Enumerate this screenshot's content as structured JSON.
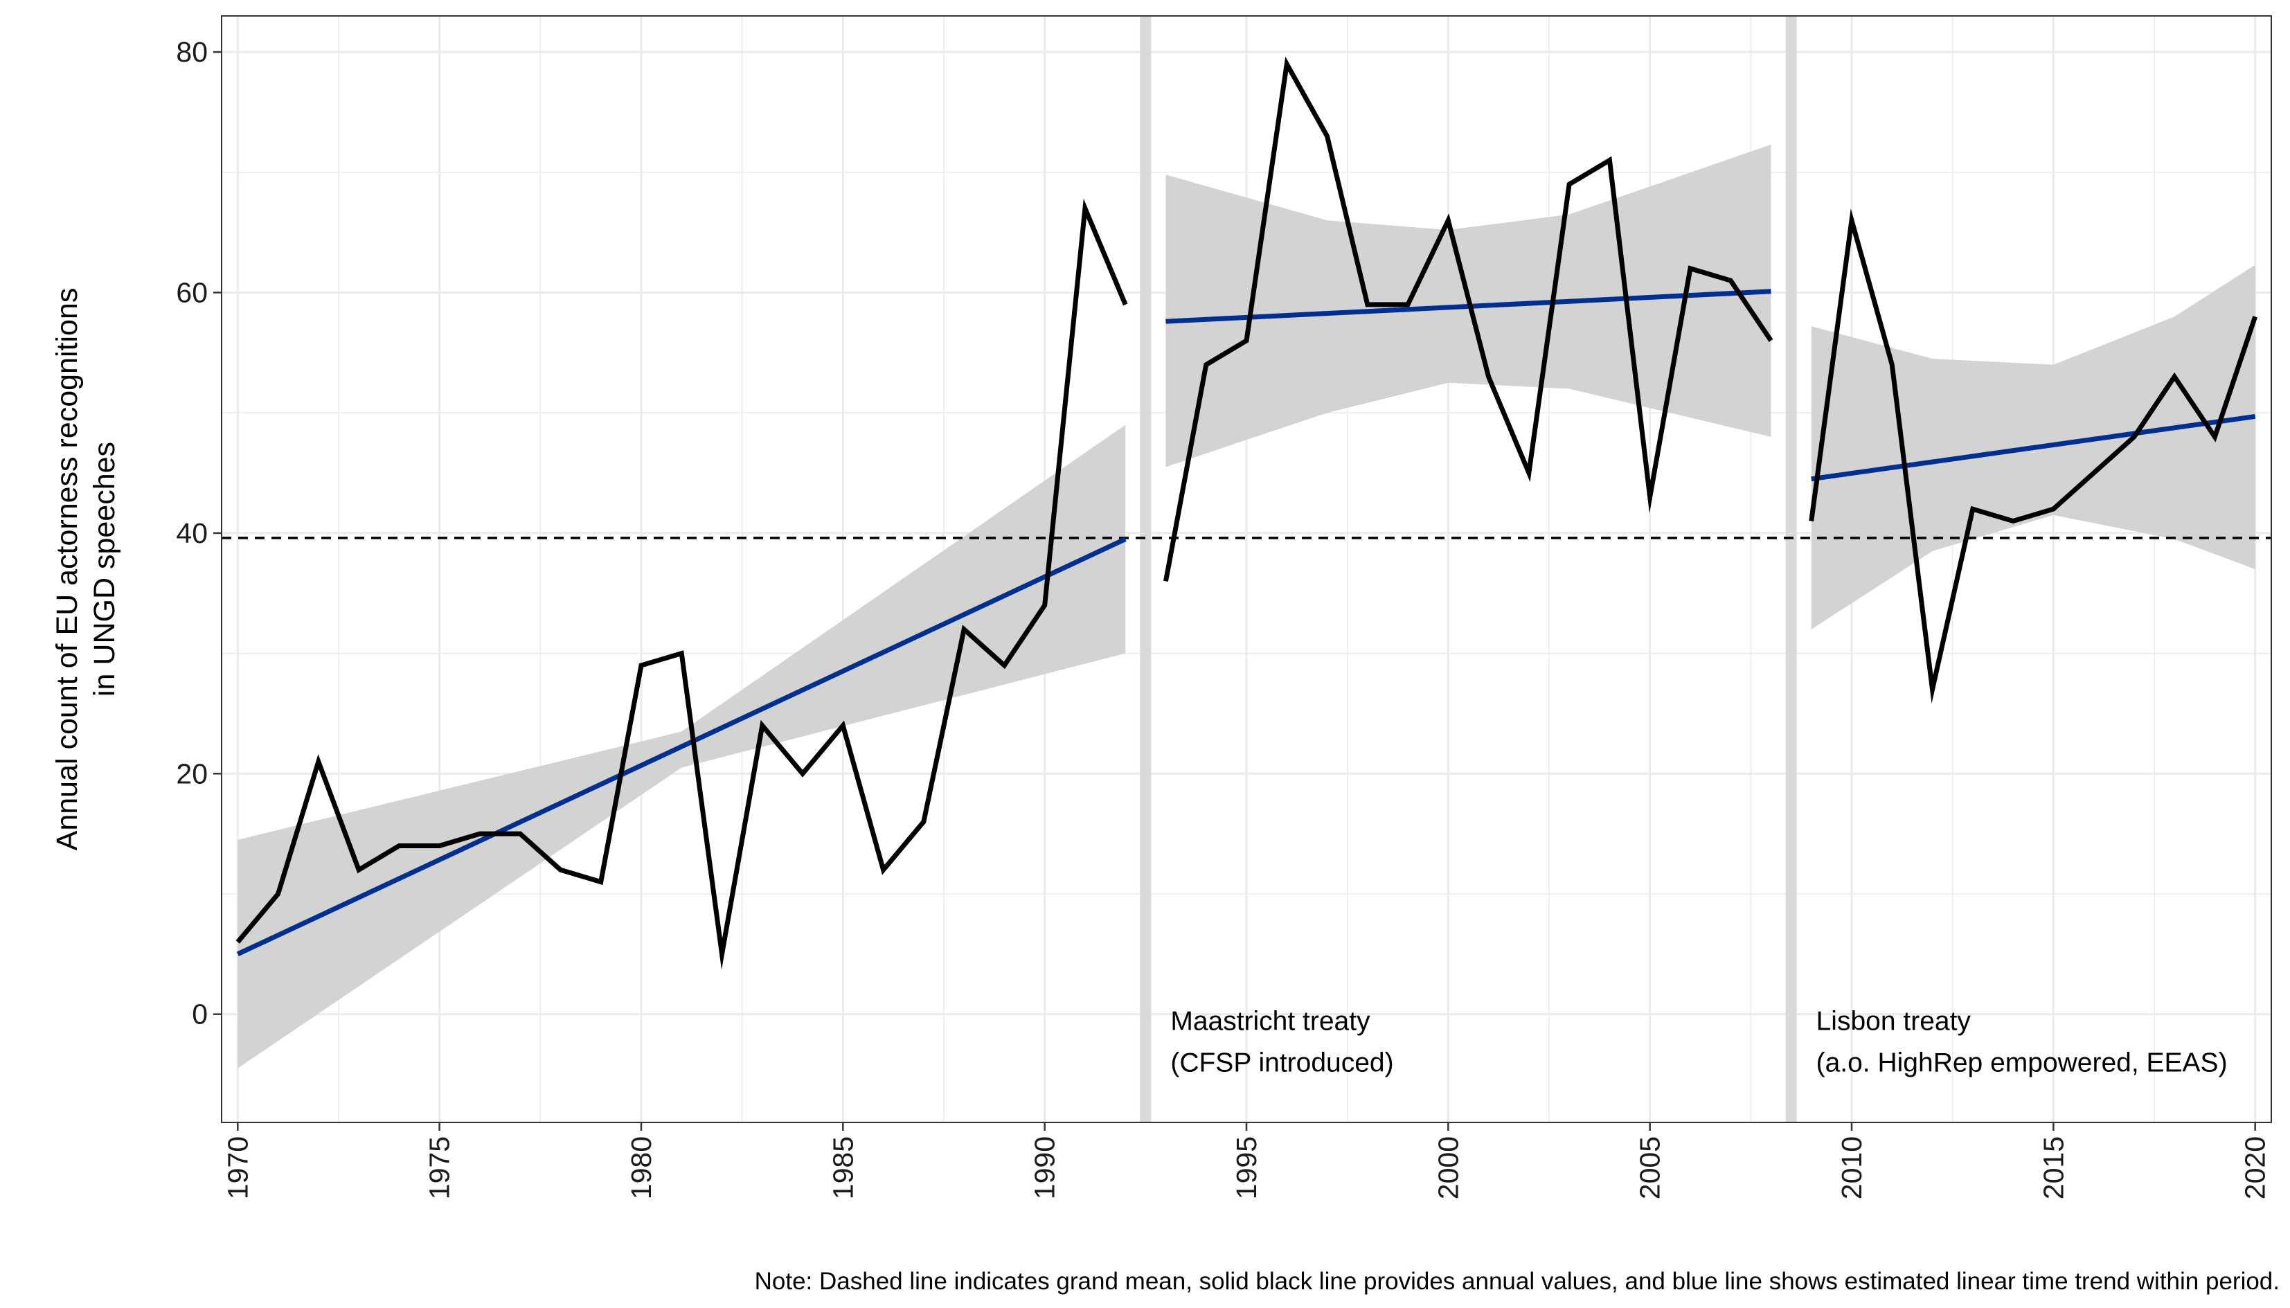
{
  "chart_data": {
    "type": "line",
    "ylabel_lines": [
      "Annual count of EU actorness recognitions",
      "in UNGD speeches"
    ],
    "xlim": [
      1969.6,
      2020.4
    ],
    "ylim": [
      -9,
      83
    ],
    "x_ticks": [
      1970,
      1975,
      1980,
      1985,
      1990,
      1995,
      2000,
      2005,
      2010,
      2015,
      2020
    ],
    "y_ticks": [
      0,
      20,
      40,
      60,
      80
    ],
    "grid": true,
    "grand_mean": 39.6,
    "periods": [
      {
        "x": [
          1970,
          1971,
          1972,
          1973,
          1974,
          1975,
          1976,
          1977,
          1978,
          1979,
          1980,
          1981,
          1982,
          1983,
          1984,
          1985,
          1986,
          1987,
          1988,
          1989,
          1990,
          1991,
          1992
        ],
        "values": [
          6,
          10,
          21,
          12,
          14,
          14,
          15,
          15,
          12,
          11,
          29,
          30,
          5,
          24,
          20,
          24,
          12,
          16,
          32,
          29,
          34,
          67,
          59
        ],
        "trend": [
          [
            1970,
            5
          ],
          [
            1992,
            39.5
          ]
        ],
        "ci_lower": [
          [
            1970,
            -4.5
          ],
          [
            1981,
            20.5
          ],
          [
            1992,
            30
          ]
        ],
        "ci_upper": [
          [
            1970,
            14.5
          ],
          [
            1981,
            23.5
          ],
          [
            1992,
            49
          ]
        ]
      },
      {
        "x": [
          1993,
          1994,
          1995,
          1996,
          1997,
          1998,
          1999,
          2000,
          2001,
          2002,
          2003,
          2004,
          2005,
          2006,
          2007,
          2008
        ],
        "values": [
          36,
          54,
          56,
          79,
          73,
          59,
          59,
          66,
          53,
          45,
          69,
          71,
          43,
          62,
          61,
          56
        ],
        "trend": [
          [
            1993,
            57.6
          ],
          [
            2008,
            60.1
          ]
        ],
        "ci_lower": [
          [
            1993,
            45.5
          ],
          [
            1997,
            50
          ],
          [
            2000,
            52.5
          ],
          [
            2003,
            52
          ],
          [
            2008,
            48
          ]
        ],
        "ci_upper": [
          [
            1993,
            69.8
          ],
          [
            1997,
            66
          ],
          [
            2000,
            65.2
          ],
          [
            2003,
            66.5
          ],
          [
            2008,
            72.3
          ]
        ]
      },
      {
        "x": [
          2009,
          2010,
          2011,
          2012,
          2013,
          2014,
          2015,
          2016,
          2017,
          2018,
          2019,
          2020
        ],
        "values": [
          41,
          66,
          54,
          27,
          42,
          41,
          42,
          45,
          48,
          53,
          48,
          58
        ],
        "trend": [
          [
            2009,
            44.5
          ],
          [
            2020,
            49.7
          ]
        ],
        "ci_lower": [
          [
            2009,
            32
          ],
          [
            2012,
            38.5
          ],
          [
            2015,
            41.5
          ],
          [
            2018,
            39.5
          ],
          [
            2020,
            37
          ]
        ],
        "ci_upper": [
          [
            2009,
            57.2
          ],
          [
            2012,
            54.5
          ],
          [
            2015,
            54
          ],
          [
            2018,
            58
          ],
          [
            2020,
            62.3
          ]
        ]
      }
    ],
    "events": [
      {
        "x": 1992.5,
        "label_lines": [
          "Maastricht treaty",
          "(CFSP introduced)"
        ]
      },
      {
        "x": 2008.5,
        "label_lines": [
          "Lisbon treaty",
          "(a.o. HighRep empowered, EEAS)"
        ]
      }
    ],
    "colors": {
      "annual": "#000000",
      "trend": "#00308F",
      "ci": "#D3D3D3",
      "event_bar": "#D9D9D9",
      "grid": "#EBEBEB",
      "mean": "#000000"
    },
    "note": "Note: Dashed line indicates grand mean, solid black line provides annual values, and blue line shows estimated linear time trend within period."
  }
}
